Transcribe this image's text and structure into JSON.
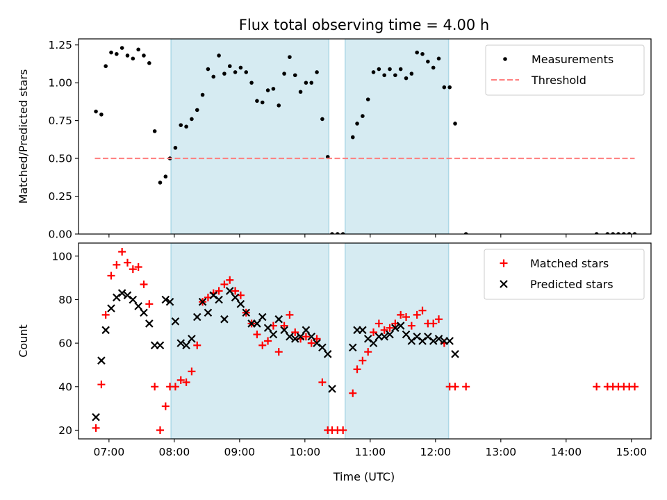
{
  "chart_data": [
    {
      "type": "scatter",
      "title": "Flux total observing time = 4.00 h",
      "xlabel": "",
      "ylabel": "Matched/Predicted stars",
      "xlim": [
        "06:32",
        "15:18"
      ],
      "ylim": [
        0,
        1.29
      ],
      "x_ticks": [
        "07:00",
        "08:00",
        "09:00",
        "10:00",
        "11:00",
        "12:00",
        "13:00",
        "14:00",
        "15:00"
      ],
      "y_ticks": [
        "0.00",
        "0.25",
        "0.50",
        "0.75",
        "1.00",
        "1.25"
      ],
      "observing_windows": [
        [
          "07:57",
          "10:22"
        ],
        [
          "10:37",
          "12:12"
        ]
      ],
      "legend_position": "top-right",
      "series": [
        {
          "name": "Measurements",
          "color": "#000000",
          "marker": "dot",
          "x": [
            "06:48",
            "06:53",
            "06:57",
            "07:02",
            "07:07",
            "07:12",
            "07:17",
            "07:22",
            "07:27",
            "07:32",
            "07:37",
            "07:42",
            "07:47",
            "07:52",
            "07:56",
            "08:01",
            "08:06",
            "08:11",
            "08:16",
            "08:21",
            "08:26",
            "08:31",
            "08:36",
            "08:41",
            "08:46",
            "08:51",
            "08:56",
            "09:01",
            "09:06",
            "09:11",
            "09:16",
            "09:21",
            "09:26",
            "09:31",
            "09:36",
            "09:41",
            "09:46",
            "09:51",
            "09:56",
            "10:01",
            "10:06",
            "10:11",
            "10:16",
            "10:21",
            "10:25",
            "10:30",
            "10:35",
            "10:44",
            "10:48",
            "10:53",
            "10:58",
            "11:03",
            "11:08",
            "11:13",
            "11:18",
            "11:23",
            "11:28",
            "11:33",
            "11:38",
            "11:43",
            "11:48",
            "11:53",
            "11:58",
            "12:03",
            "12:08",
            "12:13",
            "12:18",
            "12:28",
            "14:28",
            "14:38",
            "14:43",
            "14:48",
            "14:53",
            "14:58",
            "15:03"
          ],
          "y": [
            0.81,
            0.79,
            1.11,
            1.2,
            1.19,
            1.23,
            1.18,
            1.16,
            1.22,
            1.18,
            1.13,
            0.68,
            0.34,
            0.38,
            0.5,
            0.57,
            0.72,
            0.71,
            0.76,
            0.82,
            0.92,
            1.09,
            1.04,
            1.18,
            1.06,
            1.11,
            1.07,
            1.1,
            1.07,
            1.0,
            0.88,
            0.87,
            0.95,
            0.96,
            0.85,
            1.06,
            1.17,
            1.05,
            0.94,
            1.0,
            1.0,
            1.07,
            0.76,
            0.51,
            0.0,
            0.0,
            0.0,
            0.64,
            0.73,
            0.78,
            0.89,
            1.07,
            1.09,
            1.05,
            1.09,
            1.05,
            1.09,
            1.03,
            1.06,
            1.2,
            1.19,
            1.14,
            1.1,
            1.16,
            0.97,
            0.97,
            0.73,
            0.0,
            0.0,
            0.0,
            0.0,
            0.0,
            0.0,
            0.0,
            0.0
          ]
        },
        {
          "name": "Threshold",
          "color": "#ff7f7f",
          "marker": "dashed-line",
          "x": [
            "06:47",
            "15:03"
          ],
          "y": [
            0.5,
            0.5
          ]
        }
      ]
    },
    {
      "type": "scatter",
      "title": "",
      "xlabel": "Time (UTC)",
      "ylabel": "Count",
      "xlim": [
        "06:32",
        "15:18"
      ],
      "ylim": [
        16,
        106
      ],
      "x_ticks": [
        "07:00",
        "08:00",
        "09:00",
        "10:00",
        "11:00",
        "12:00",
        "13:00",
        "14:00",
        "15:00"
      ],
      "y_ticks": [
        "20",
        "40",
        "60",
        "80",
        "100"
      ],
      "observing_windows": [
        [
          "07:57",
          "10:22"
        ],
        [
          "10:37",
          "12:12"
        ]
      ],
      "legend_position": "top-right",
      "series": [
        {
          "name": "Matched stars",
          "color": "#ff0000",
          "marker": "plus",
          "x": [
            "06:48",
            "06:53",
            "06:57",
            "07:02",
            "07:07",
            "07:12",
            "07:17",
            "07:22",
            "07:27",
            "07:32",
            "07:37",
            "07:42",
            "07:47",
            "07:52",
            "07:56",
            "08:01",
            "08:06",
            "08:11",
            "08:16",
            "08:21",
            "08:26",
            "08:31",
            "08:36",
            "08:41",
            "08:46",
            "08:51",
            "08:56",
            "09:01",
            "09:06",
            "09:11",
            "09:16",
            "09:21",
            "09:26",
            "09:31",
            "09:36",
            "09:41",
            "09:46",
            "09:51",
            "09:56",
            "10:01",
            "10:06",
            "10:11",
            "10:16",
            "10:21",
            "10:25",
            "10:30",
            "10:35",
            "10:44",
            "10:48",
            "10:53",
            "10:58",
            "11:03",
            "11:08",
            "11:13",
            "11:18",
            "11:23",
            "11:28",
            "11:33",
            "11:38",
            "11:43",
            "11:48",
            "11:53",
            "11:58",
            "12:03",
            "12:08",
            "12:13",
            "12:18",
            "12:28",
            "14:28",
            "14:38",
            "14:43",
            "14:48",
            "14:53",
            "14:58",
            "15:03"
          ],
          "y": [
            21,
            41,
            73,
            91,
            96,
            102,
            97,
            94,
            95,
            87,
            78,
            40,
            20,
            31,
            40,
            40,
            43,
            42,
            47,
            59,
            79,
            81,
            83,
            84,
            87,
            89,
            84,
            82,
            74,
            69,
            64,
            59,
            61,
            68,
            56,
            68,
            73,
            65,
            62,
            63,
            60,
            62,
            42,
            20,
            20,
            20,
            20,
            37,
            48,
            52,
            56,
            65,
            69,
            66,
            67,
            69,
            73,
            72,
            68,
            73,
            75,
            69,
            69,
            71,
            60,
            40,
            40,
            40,
            40,
            40,
            40,
            40,
            40,
            40,
            40
          ]
        },
        {
          "name": "Predicted stars",
          "color": "#000000",
          "marker": "x",
          "x": [
            "06:48",
            "06:53",
            "06:57",
            "07:02",
            "07:07",
            "07:12",
            "07:17",
            "07:22",
            "07:27",
            "07:32",
            "07:37",
            "07:42",
            "07:47",
            "07:52",
            "07:56",
            "08:01",
            "08:06",
            "08:11",
            "08:16",
            "08:21",
            "08:26",
            "08:31",
            "08:36",
            "08:41",
            "08:46",
            "08:51",
            "08:56",
            "09:01",
            "09:06",
            "09:11",
            "09:16",
            "09:21",
            "09:26",
            "09:31",
            "09:36",
            "09:41",
            "09:46",
            "09:51",
            "09:56",
            "10:01",
            "10:06",
            "10:11",
            "10:16",
            "10:21",
            "10:25",
            "10:44",
            "10:48",
            "10:53",
            "10:58",
            "11:03",
            "11:08",
            "11:13",
            "11:18",
            "11:23",
            "11:28",
            "11:33",
            "11:38",
            "11:43",
            "11:48",
            "11:53",
            "11:58",
            "12:03",
            "12:08",
            "12:13",
            "12:18"
          ],
          "y": [
            26,
            52,
            66,
            76,
            81,
            83,
            82,
            80,
            77,
            74,
            69,
            59,
            59,
            80,
            79,
            70,
            60,
            59,
            62,
            72,
            79,
            74,
            82,
            80,
            71,
            84,
            81,
            78,
            74,
            69,
            69,
            72,
            67,
            64,
            71,
            66,
            63,
            62,
            63,
            66,
            63,
            60,
            58,
            55,
            39,
            58,
            66,
            66,
            62,
            60,
            63,
            63,
            64,
            67,
            68,
            64,
            61,
            63,
            61,
            63,
            61,
            62,
            61,
            61,
            55
          ]
        }
      ]
    }
  ]
}
